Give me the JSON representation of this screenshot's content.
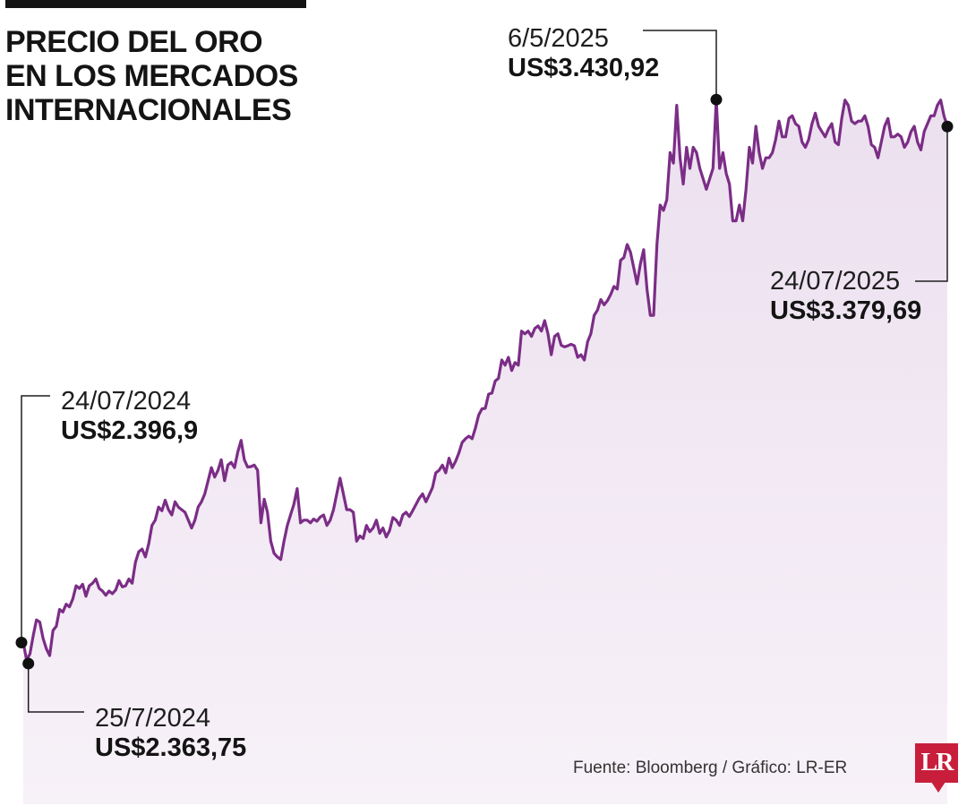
{
  "title_lines": [
    "PRECIO DEL ORO",
    "EN LOS MERCADOS",
    "INTERNACIONALES"
  ],
  "source": "Fuente: Bloomberg / Gráfico: LR-ER",
  "logo_text": "LR",
  "colors": {
    "line": "#7b2d86",
    "area": "#f0e6f2",
    "icon": "#d4b6dc",
    "ink": "#141414",
    "logo": "#c81e3c"
  },
  "icons": [
    "gold-bars-icon",
    "sparkle-icon"
  ],
  "chart_data": {
    "type": "area",
    "title": "PRECIO DEL ORO EN LOS MERCADOS INTERNACIONALES",
    "xlabel": "",
    "ylabel": "",
    "grid": false,
    "x_range": [
      "24/07/2024",
      "24/07/2025"
    ],
    "y_range": [
      2350,
      3450
    ],
    "annotations": [
      {
        "date": "24/07/2024",
        "value": "US$2.396,9",
        "y": 2396.9
      },
      {
        "date": "25/7/2024",
        "value": "US$2.363,75",
        "y": 2363.75
      },
      {
        "date": "6/5/2025",
        "value": "US$3.430,92",
        "y": 3430.92
      },
      {
        "date": "24/07/2025",
        "value": "US$3.379,69",
        "y": 3379.69
      }
    ],
    "series": [
      {
        "values": [
          2396.9,
          2363.75,
          2375,
          2410,
          2440,
          2436,
          2405,
          2385,
          2372,
          2420,
          2428,
          2460,
          2455,
          2470,
          2465,
          2480,
          2505,
          2500,
          2508,
          2485,
          2505,
          2510,
          2518,
          2500,
          2495,
          2487,
          2495,
          2490,
          2497,
          2515,
          2503,
          2505,
          2518,
          2510,
          2550,
          2570,
          2575,
          2560,
          2585,
          2620,
          2630,
          2655,
          2648,
          2668,
          2650,
          2640,
          2665,
          2655,
          2650,
          2645,
          2630,
          2615,
          2630,
          2655,
          2665,
          2680,
          2705,
          2730,
          2712,
          2725,
          2745,
          2705,
          2735,
          2740,
          2730,
          2760,
          2782,
          2745,
          2731,
          2732,
          2735,
          2725,
          2625,
          2670,
          2645,
          2590,
          2567,
          2560,
          2555,
          2590,
          2620,
          2640,
          2660,
          2690,
          2625,
          2630,
          2630,
          2625,
          2632,
          2628,
          2636,
          2640,
          2620,
          2630,
          2650,
          2680,
          2710,
          2680,
          2650,
          2650,
          2645,
          2590,
          2600,
          2595,
          2620,
          2608,
          2615,
          2630,
          2605,
          2615,
          2598,
          2610,
          2635,
          2630,
          2620,
          2640,
          2645,
          2637,
          2648,
          2660,
          2672,
          2680,
          2665,
          2678,
          2692,
          2720,
          2725,
          2735,
          2720,
          2748,
          2730,
          2742,
          2758,
          2778,
          2785,
          2790,
          2785,
          2805,
          2830,
          2842,
          2843,
          2870,
          2872,
          2895,
          2900,
          2935,
          2925,
          2940,
          2915,
          2930,
          2925,
          2990,
          2985,
          2990,
          2980,
          2995,
          3000,
          2990,
          3010,
          2985,
          2945,
          2980,
          2985,
          2963,
          2960,
          2962,
          2965,
          2962,
          2940,
          2945,
          2935,
          2970,
          2985,
          3020,
          3030,
          3050,
          3040,
          3048,
          3060,
          3075,
          3070,
          3125,
          3130,
          3155,
          3140,
          3110,
          3080,
          3118,
          3145,
          3070,
          3020,
          3020,
          3155,
          3230,
          3220,
          3240,
          3330,
          3310,
          3420,
          3320,
          3270,
          3340,
          3300,
          3340,
          3330,
          3300,
          3280,
          3260,
          3280,
          3300,
          3430.92,
          3300,
          3330,
          3290,
          3270,
          3200,
          3200,
          3230,
          3200,
          3260,
          3340,
          3310,
          3380,
          3330,
          3300,
          3320,
          3320,
          3330,
          3355,
          3390,
          3360,
          3360,
          3395,
          3400,
          3385,
          3380,
          3350,
          3340,
          3355,
          3385,
          3405,
          3380,
          3370,
          3360,
          3375,
          3385,
          3350,
          3345,
          3395,
          3430,
          3420,
          3390,
          3385,
          3390,
          3390,
          3400,
          3380,
          3345,
          3340,
          3320,
          3350,
          3380,
          3395,
          3360,
          3360,
          3365,
          3360,
          3340,
          3350,
          3370,
          3380,
          3350,
          3335,
          3370,
          3385,
          3400,
          3400,
          3420,
          3430,
          3400,
          3379.69
        ]
      }
    ]
  }
}
